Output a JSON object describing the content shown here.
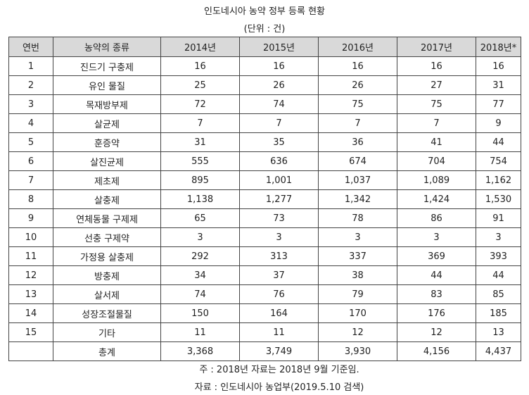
{
  "title": "인도네시아 농약 정부 등록 현황",
  "unit": "(단위 : 건)",
  "table": {
    "header": [
      "연번",
      "농약의 종류",
      "2014년",
      "2015년",
      "2016년",
      "2017년",
      "2018년*"
    ],
    "rows": [
      [
        "1",
        "진드기 구충제",
        "16",
        "16",
        "16",
        "16",
        "16"
      ],
      [
        "2",
        "유인 물질",
        "25",
        "26",
        "26",
        "27",
        "31"
      ],
      [
        "3",
        "목재방부제",
        "72",
        "74",
        "75",
        "75",
        "77"
      ],
      [
        "4",
        "살균제",
        "7",
        "7",
        "7",
        "7",
        "9"
      ],
      [
        "5",
        "훈증약",
        "31",
        "35",
        "36",
        "41",
        "44"
      ],
      [
        "6",
        "살진균제",
        "555",
        "636",
        "674",
        "704",
        "754"
      ],
      [
        "7",
        "제초제",
        "895",
        "1,001",
        "1,037",
        "1,089",
        "1,162"
      ],
      [
        "8",
        "살충제",
        "1,138",
        "1,277",
        "1,342",
        "1,424",
        "1,530"
      ],
      [
        "9",
        "연체동물 구제제",
        "65",
        "73",
        "78",
        "86",
        "91"
      ],
      [
        "10",
        "선충 구제약",
        "3",
        "3",
        "3",
        "3",
        "3"
      ],
      [
        "11",
        "가정용 살충제",
        "292",
        "313",
        "337",
        "369",
        "393"
      ],
      [
        "12",
        "방충제",
        "34",
        "37",
        "38",
        "44",
        "44"
      ],
      [
        "13",
        "살서제",
        "74",
        "76",
        "79",
        "83",
        "85"
      ],
      [
        "14",
        "성장조절물질",
        "150",
        "164",
        "170",
        "176",
        "185"
      ],
      [
        "15",
        "기타",
        "11",
        "11",
        "12",
        "12",
        "13"
      ]
    ],
    "total": {
      "label": "총계",
      "values": [
        "3,368",
        "3,749",
        "3,930",
        "4,156",
        "4,437"
      ]
    }
  },
  "notes": [
    "주 : 2018년 자료는 2018년 9월 기준임.",
    "자료 : 인도네시아 농업부(2019.5.10 검색)"
  ]
}
